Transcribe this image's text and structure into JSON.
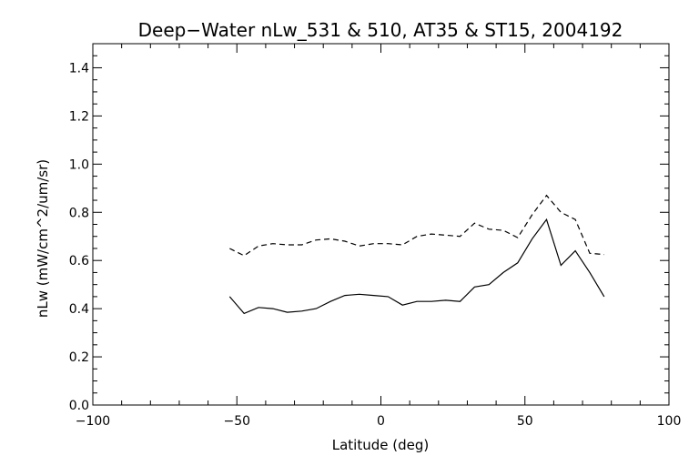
{
  "chart_data": {
    "type": "line",
    "title": "Deep−Water nLw_531 & 510, AT35 & ST15, 2004192",
    "xlabel": "Latitude (deg)",
    "ylabel": "nLw (mW/cm^2/um/sr)",
    "xlim": [
      -100,
      100
    ],
    "ylim": [
      0.0,
      1.5
    ],
    "x_ticks": [
      -100,
      -50,
      0,
      50,
      100
    ],
    "x_tick_labels": [
      "−100",
      "−50",
      "0",
      "50",
      "100"
    ],
    "y_ticks": [
      0.0,
      0.2,
      0.4,
      0.6,
      0.8,
      1.0,
      1.2,
      1.4
    ],
    "y_tick_labels": [
      "0.0",
      "0.2",
      "0.4",
      "0.6",
      "0.8",
      "1.0",
      "1.2",
      "1.4"
    ],
    "x_minor_step": 10,
    "y_minor_step": 0.05,
    "grid": false,
    "series": [
      {
        "style": "solid",
        "x": [
          -52.5,
          -47.5,
          -42.5,
          -37.5,
          -32.5,
          -27.5,
          -22.5,
          -17.5,
          -12.5,
          -7.5,
          -2.5,
          2.5,
          7.5,
          12.5,
          17.5,
          22.5,
          27.5,
          32.5,
          37.5,
          42.5,
          47.5,
          52.5,
          57.5,
          62.5,
          67.5,
          72.5,
          77.5
        ],
        "y": [
          0.45,
          0.38,
          0.405,
          0.4,
          0.385,
          0.39,
          0.4,
          0.43,
          0.455,
          0.46,
          0.455,
          0.45,
          0.415,
          0.43,
          0.43,
          0.435,
          0.43,
          0.49,
          0.5,
          0.55,
          0.59,
          0.69,
          0.77,
          0.58,
          0.64,
          0.55,
          0.45
        ]
      },
      {
        "style": "dashed",
        "x": [
          -52.5,
          -47.5,
          -42.5,
          -37.5,
          -32.5,
          -27.5,
          -22.5,
          -17.5,
          -12.5,
          -7.5,
          -2.5,
          2.5,
          7.5,
          12.5,
          17.5,
          22.5,
          27.5,
          32.5,
          37.5,
          42.5,
          47.5,
          52.5,
          57.5,
          62.5,
          67.5,
          72.5,
          77.5
        ],
        "y": [
          0.65,
          0.62,
          0.66,
          0.67,
          0.665,
          0.665,
          0.685,
          0.69,
          0.68,
          0.66,
          0.67,
          0.67,
          0.665,
          0.7,
          0.71,
          0.705,
          0.7,
          0.755,
          0.73,
          0.725,
          0.695,
          0.79,
          0.87,
          0.8,
          0.77,
          0.63,
          0.625
        ]
      }
    ]
  }
}
